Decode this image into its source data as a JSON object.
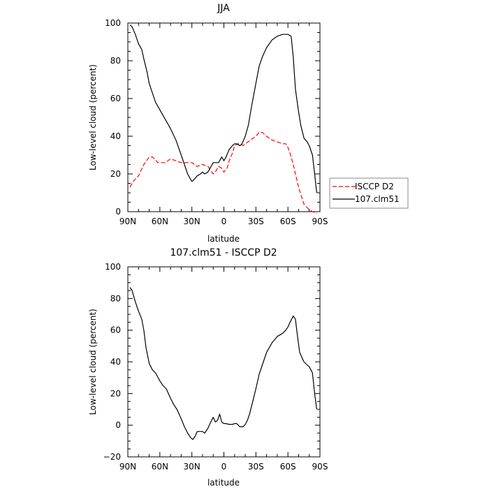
{
  "chart_data": [
    {
      "type": "line",
      "title": "JJA",
      "xlabel": "latitude",
      "ylabel": "Low-level cloud (percent)",
      "xlim": [
        90,
        -90
      ],
      "ylim": [
        0,
        100
      ],
      "xticks": [
        {
          "value": 90,
          "label": "90N"
        },
        {
          "value": 60,
          "label": "60N"
        },
        {
          "value": 30,
          "label": "30N"
        },
        {
          "value": 0,
          "label": "0"
        },
        {
          "value": -30,
          "label": "30S"
        },
        {
          "value": -60,
          "label": "60S"
        },
        {
          "value": -90,
          "label": "90S"
        }
      ],
      "yticks": [
        {
          "value": 0,
          "label": "0"
        },
        {
          "value": 20,
          "label": "20"
        },
        {
          "value": 40,
          "label": "40"
        },
        {
          "value": 60,
          "label": "60"
        },
        {
          "value": 80,
          "label": "80"
        },
        {
          "value": 100,
          "label": "100"
        }
      ],
      "legend_placement": "right",
      "series": [
        {
          "name": "ISCCP D2",
          "color": "#ff0000",
          "dashed": true,
          "x": [
            88,
            85,
            80,
            75,
            70,
            67,
            65,
            62,
            60,
            55,
            50,
            45,
            40,
            35,
            30,
            25,
            20,
            15,
            10,
            8,
            5,
            2,
            0,
            -3,
            -5,
            -8,
            -10,
            -13,
            -15,
            -18,
            -20,
            -25,
            -30,
            -33,
            -36,
            -40,
            -45,
            -50,
            -55,
            -58,
            -60,
            -62,
            -65,
            -70,
            -75,
            -80,
            -83,
            -85,
            -87
          ],
          "y": [
            13,
            16,
            19,
            25,
            29,
            29,
            28,
            26,
            26,
            26,
            28,
            27,
            26,
            26,
            26,
            24,
            25,
            24,
            20,
            21,
            24,
            23,
            21,
            23,
            27,
            31,
            35,
            36,
            36,
            35,
            36,
            38,
            40,
            42,
            42,
            40,
            38,
            37,
            36,
            36,
            34,
            31,
            25,
            13,
            4,
            1,
            0,
            -0.5,
            -1
          ]
        },
        {
          "name": "107.clm51",
          "color": "#000000",
          "dashed": false,
          "x": [
            88,
            86,
            83,
            80,
            77,
            75,
            72,
            70,
            67,
            64,
            60,
            55,
            50,
            45,
            40,
            37,
            34,
            31,
            30,
            28,
            25,
            22,
            20,
            18,
            15,
            12,
            10,
            8,
            5,
            2,
            0,
            -2,
            -5,
            -8,
            -10,
            -12,
            -15,
            -17,
            -20,
            -23,
            -26,
            -30,
            -33,
            -36,
            -40,
            -45,
            -50,
            -55,
            -58,
            -60,
            -63,
            -65,
            -67,
            -70,
            -72,
            -75,
            -78,
            -80,
            -83,
            -85,
            -87
          ],
          "y": [
            99,
            98,
            94,
            89,
            86,
            81,
            74,
            68,
            63,
            58,
            54,
            49,
            44,
            38,
            30,
            25,
            20,
            17,
            16,
            17,
            19,
            20,
            21,
            20,
            21,
            24,
            26,
            26,
            26,
            29,
            27,
            29,
            33,
            35,
            36,
            36,
            35,
            36,
            40,
            46,
            56,
            68,
            77,
            82,
            87,
            91,
            93,
            94,
            94,
            94,
            93,
            82,
            65,
            53,
            46,
            39,
            37,
            35,
            30,
            20,
            10
          ]
        }
      ]
    },
    {
      "type": "line",
      "title": "107.clm51 - ISCCP D2",
      "xlabel": "latitude",
      "ylabel": "Low-level cloud (percent)",
      "xlim": [
        90,
        -90
      ],
      "ylim": [
        -20,
        100
      ],
      "xticks": [
        {
          "value": 90,
          "label": "90N"
        },
        {
          "value": 60,
          "label": "60N"
        },
        {
          "value": 30,
          "label": "30N"
        },
        {
          "value": 0,
          "label": "0"
        },
        {
          "value": -30,
          "label": "30S"
        },
        {
          "value": -60,
          "label": "60S"
        },
        {
          "value": -90,
          "label": "90S"
        }
      ],
      "yticks": [
        {
          "value": -20,
          "label": "−20"
        },
        {
          "value": 0,
          "label": "0"
        },
        {
          "value": 20,
          "label": "20"
        },
        {
          "value": 40,
          "label": "40"
        },
        {
          "value": 60,
          "label": "60"
        },
        {
          "value": 80,
          "label": "80"
        },
        {
          "value": 100,
          "label": "100"
        }
      ],
      "series": [
        {
          "color": "#000000",
          "dashed": false,
          "x": [
            88,
            86,
            83,
            80,
            77,
            75,
            73,
            70,
            67,
            64,
            60,
            57,
            54,
            50,
            47,
            44,
            40,
            37,
            34,
            31,
            29,
            27,
            25,
            22,
            20,
            18,
            15,
            13,
            10,
            8,
            6,
            4,
            2,
            0,
            -2,
            -5,
            -8,
            -10,
            -12,
            -15,
            -18,
            -20,
            -22,
            -24,
            -27,
            -30,
            -33,
            -36,
            -40,
            -45,
            -50,
            -55,
            -58,
            -60,
            -62,
            -65,
            -67,
            -69,
            -71,
            -73,
            -75,
            -78,
            -80,
            -83,
            -85,
            -87
          ],
          "y": [
            87,
            85,
            78,
            72,
            67,
            60,
            49,
            39,
            35,
            33,
            28,
            25,
            23,
            17,
            13,
            10,
            4,
            -1,
            -5,
            -8,
            -9,
            -7,
            -4,
            -4,
            -4,
            -5,
            -2,
            1,
            5,
            2,
            3,
            7,
            2,
            1,
            1,
            0.5,
            0.5,
            1,
            1,
            -1,
            -1,
            0.5,
            3,
            7,
            15,
            23,
            32,
            38,
            46,
            52,
            56,
            58,
            60,
            62,
            65,
            69,
            67,
            56,
            46,
            43,
            40,
            38,
            37,
            33,
            20,
            10
          ]
        }
      ]
    }
  ]
}
